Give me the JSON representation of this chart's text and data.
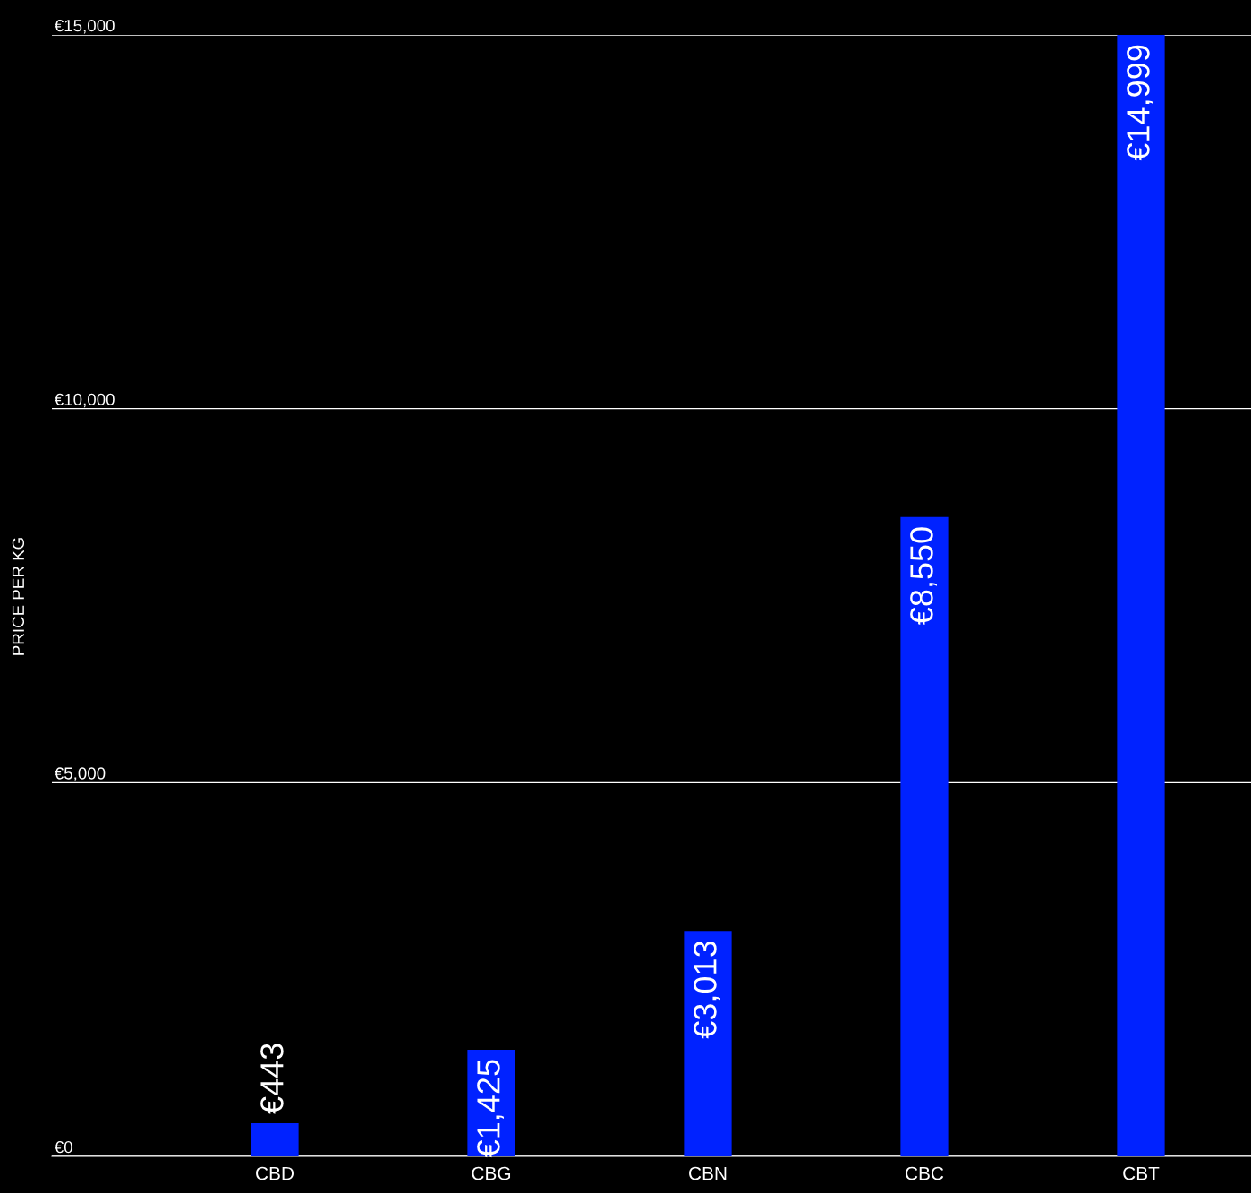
{
  "chart_data": {
    "type": "bar",
    "ylabel": "PRICE PER KG",
    "categories": [
      "CBD",
      "CBG",
      "CBN",
      "CBC",
      "CBT"
    ],
    "values": [
      443,
      1425,
      3013,
      8550,
      14999
    ],
    "value_labels": [
      "€443",
      "€1,425",
      "€3,013",
      "€8,550",
      "€14,999"
    ],
    "color": "#0022ff",
    "ylim": [
      0,
      15000
    ],
    "yticks": [
      {
        "value": 0,
        "label": "€0"
      },
      {
        "value": 5000,
        "label": "€5,000"
      },
      {
        "value": 10000,
        "label": "€10,000"
      },
      {
        "value": 15000,
        "label": "€15,000"
      }
    ],
    "grid": "y"
  }
}
